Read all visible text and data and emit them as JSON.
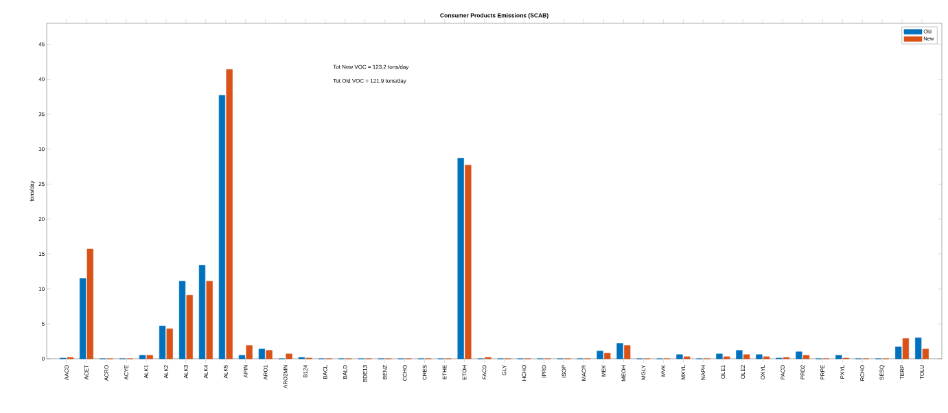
{
  "chart_data": {
    "type": "bar",
    "title": "Consumer Products Emissions (SCAB)",
    "ylabel": "tons/day",
    "categories": [
      "AACD",
      "ACET",
      "ACRO",
      "ACYE",
      "ALK1",
      "ALK2",
      "ALK3",
      "ALK4",
      "ALK5",
      "APIN",
      "ARO1",
      "ARO2MN",
      "B124",
      "BACL",
      "BALD",
      "BDE13",
      "BENZ",
      "CCHO",
      "CRES",
      "ETHE",
      "ETOH",
      "FACD",
      "GLY",
      "HCHO",
      "IPRD",
      "ISOP",
      "MACR",
      "MEK",
      "MEOH",
      "MGLY",
      "MVK",
      "MXYL",
      "NAPH",
      "OLE1",
      "OLE2",
      "OXYL",
      "PACD",
      "PRD2",
      "PRPE",
      "PXYL",
      "RCHO",
      "SESQ",
      "TERP",
      "TOLU"
    ],
    "series": [
      {
        "name": "Old",
        "color": "#0072bd",
        "values": [
          0.1,
          11.5,
          0,
          0,
          0.5,
          4.7,
          11.1,
          13.4,
          37.7,
          0.5,
          1.4,
          0,
          0.2,
          0,
          0,
          0,
          0,
          0,
          0,
          0,
          28.7,
          0,
          0,
          0,
          0,
          0,
          0,
          1.1,
          2.2,
          0,
          0,
          0.6,
          0,
          0.7,
          1.2,
          0.6,
          0.1,
          1.0,
          0,
          0.5,
          0,
          0,
          1.7,
          3.0
        ]
      },
      {
        "name": "New",
        "color": "#d95319",
        "values": [
          0.2,
          15.7,
          0,
          0,
          0.5,
          4.3,
          9.1,
          11.1,
          41.4,
          1.9,
          1.2,
          0.7,
          0.1,
          0,
          0,
          0,
          0,
          0,
          0,
          0,
          27.7,
          0.2,
          0,
          0,
          0,
          0,
          0,
          0.8,
          1.9,
          0,
          0,
          0.3,
          0,
          0.3,
          0.6,
          0.3,
          0.2,
          0.5,
          0,
          0.1,
          0,
          0,
          2.9,
          1.4
        ]
      }
    ],
    "ylim": [
      0,
      48
    ],
    "yticks": [
      0,
      5,
      10,
      15,
      20,
      25,
      30,
      35,
      40,
      45
    ],
    "annotations": [
      "Tot New VOC =  123.2 tons/day",
      "Tot Old VOC =  121.9 tons/day"
    ],
    "legend": "top right"
  }
}
